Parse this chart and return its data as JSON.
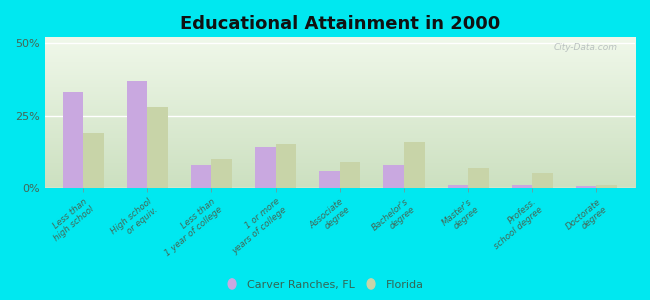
{
  "title": "Educational Attainment in 2000",
  "categories": [
    "Less than\nhigh school",
    "High school\nor equiv.",
    "Less than\n1 year of college",
    "1 or more\nyears of college",
    "Associate\ndegree",
    "Bachelor's\ndegree",
    "Master's\ndegree",
    "Profess.\nschool degree",
    "Doctorate\ndegree"
  ],
  "carver_values": [
    33,
    37,
    8,
    14,
    6,
    8,
    1,
    1,
    0.5
  ],
  "florida_values": [
    19,
    28,
    10,
    15,
    9,
    16,
    7,
    5,
    1
  ],
  "carver_color": "#c9a8e0",
  "florida_color": "#c8d4a8",
  "bg_outer": "#00e8f0",
  "bg_plot_top": "#f0f8e8",
  "bg_plot_bottom": "#d8ecc8",
  "yticks": [
    0,
    25,
    50
  ],
  "ylim": [
    0,
    52
  ],
  "legend_labels": [
    "Carver Ranches, FL",
    "Florida"
  ],
  "watermark": "City-Data.com",
  "title_fontsize": 13,
  "tick_label_fontsize": 6.2,
  "bar_width": 0.32,
  "legend_marker_color_carver": "#d4a8e0",
  "legend_marker_color_florida": "#c8d4a0"
}
